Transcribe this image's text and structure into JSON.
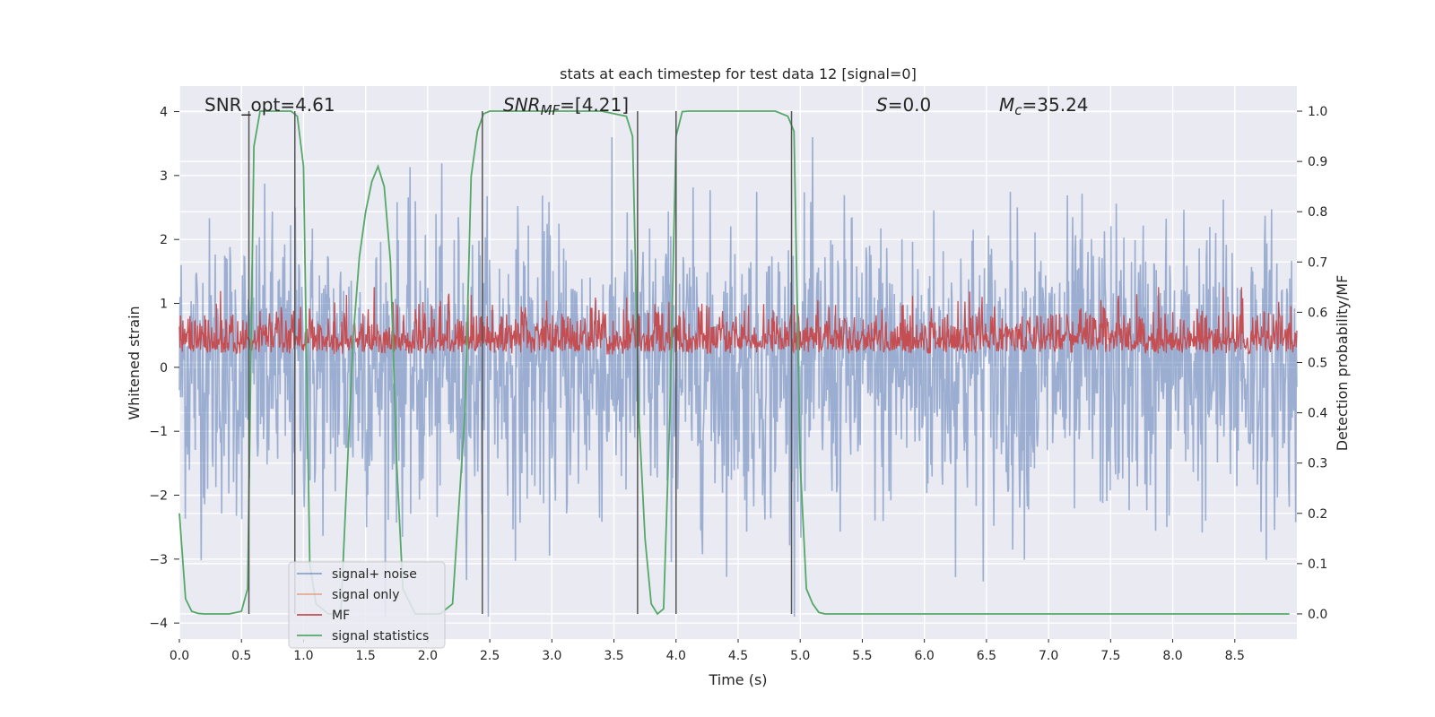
{
  "chart_data": {
    "type": "line",
    "title": "stats at each timestep for test data 12 [signal=0]",
    "xlabel": "Time (s)",
    "ylabel": "Whitened strain",
    "y2label": "Detection probability/MF",
    "xlim": [
      0.0,
      9.0
    ],
    "ylim": [
      -4.25,
      4.4
    ],
    "y2lim": [
      -0.05,
      1.05
    ],
    "xticks": [
      0.0,
      0.5,
      1.0,
      1.5,
      2.0,
      2.5,
      3.0,
      3.5,
      4.0,
      4.5,
      5.0,
      5.5,
      6.0,
      6.5,
      7.0,
      7.5,
      8.0,
      8.5
    ],
    "xtick_labels": [
      "0.0",
      "0.5",
      "1.0",
      "1.5",
      "2.0",
      "2.5",
      "3.0",
      "3.5",
      "4.0",
      "4.5",
      "5.0",
      "5.5",
      "6.0",
      "6.5",
      "7.0",
      "7.5",
      "8.0",
      "8.5"
    ],
    "yticks": [
      -4,
      -3,
      -2,
      -1,
      0,
      1,
      2,
      3,
      4
    ],
    "ytick_labels": [
      "−4",
      "−3",
      "−2",
      "−1",
      "0",
      "1",
      "2",
      "3",
      "4"
    ],
    "y2ticks": [
      0.0,
      0.1,
      0.2,
      0.3,
      0.4,
      0.5,
      0.6,
      0.7,
      0.8,
      0.9,
      1.0
    ],
    "y2tick_labels": [
      "0.0",
      "0.1",
      "0.2",
      "0.3",
      "0.4",
      "0.5",
      "0.6",
      "0.7",
      "0.8",
      "0.9",
      "1.0"
    ],
    "grid": true,
    "legend_position": "lower-left",
    "annotations": {
      "snr_opt": "SNR_opt=4.61",
      "snr_mf_main": "SNR",
      "snr_mf_sub": "MF",
      "snr_mf_value": "=[4.21]",
      "s_main": "S",
      "s_value": "=0.0",
      "mc_main": "M",
      "mc_sub": "c",
      "mc_value": "=35.24"
    },
    "series": [
      {
        "name": "signal+ noise",
        "axis": "left",
        "color": "#4c72b0",
        "kind": "noise",
        "amplitude_range": [
          -3.9,
          3.6
        ],
        "typical_range": [
          -2.2,
          2.4
        ],
        "note": "whitened strain noise, approximately 2000 samples"
      },
      {
        "name": "signal only",
        "axis": "left",
        "color": "#dd8452",
        "values": []
      },
      {
        "name": "MF",
        "axis": "right",
        "color": "#c44e52",
        "kind": "noise",
        "baseline": 0.52,
        "range": [
          0.5,
          0.65
        ]
      },
      {
        "name": "signal statistics",
        "axis": "right",
        "color": "#55a868",
        "x": [
          0.0,
          0.05,
          0.1,
          0.15,
          0.2,
          0.3,
          0.4,
          0.5,
          0.55,
          0.6,
          0.65,
          0.7,
          0.8,
          0.9,
          0.95,
          1.0,
          1.05,
          1.1,
          1.2,
          1.3,
          1.4,
          1.45,
          1.5,
          1.55,
          1.6,
          1.65,
          1.7,
          1.75,
          1.8,
          1.9,
          2.0,
          2.1,
          2.2,
          2.3,
          2.35,
          2.4,
          2.45,
          2.5,
          2.55,
          2.6,
          2.8,
          3.0,
          3.2,
          3.4,
          3.6,
          3.65,
          3.7,
          3.75,
          3.8,
          3.85,
          3.9,
          3.95,
          4.0,
          4.05,
          4.1,
          4.3,
          4.6,
          4.8,
          4.9,
          4.95,
          5.0,
          5.05,
          5.1,
          5.15,
          5.2,
          5.5,
          6.0,
          7.0,
          8.0,
          8.94
        ],
        "values": [
          0.2,
          0.03,
          0.005,
          0.001,
          0.0,
          0.0,
          0.0,
          0.005,
          0.05,
          0.93,
          1.0,
          1.0,
          1.0,
          1.0,
          0.99,
          0.89,
          0.1,
          0.02,
          0.0,
          0.0,
          0.55,
          0.71,
          0.8,
          0.86,
          0.89,
          0.85,
          0.7,
          0.3,
          0.05,
          0.0,
          0.0,
          0.0,
          0.02,
          0.4,
          0.87,
          0.96,
          0.995,
          1.0,
          1.0,
          1.0,
          1.0,
          1.0,
          1.0,
          1.0,
          0.99,
          0.95,
          0.4,
          0.15,
          0.02,
          0.0,
          0.01,
          0.4,
          0.95,
          0.999,
          1.0,
          1.0,
          1.0,
          1.0,
          0.99,
          0.96,
          0.3,
          0.05,
          0.02,
          0.003,
          0.0,
          0.0,
          0.0,
          0.0,
          0.0,
          0.0
        ]
      }
    ],
    "event_markers": {
      "color": "#555555",
      "x": [
        0.56,
        0.93,
        2.44,
        3.69,
        4.0,
        4.93
      ],
      "y2_top": 1.0,
      "y2_bottom": 0.0
    }
  }
}
